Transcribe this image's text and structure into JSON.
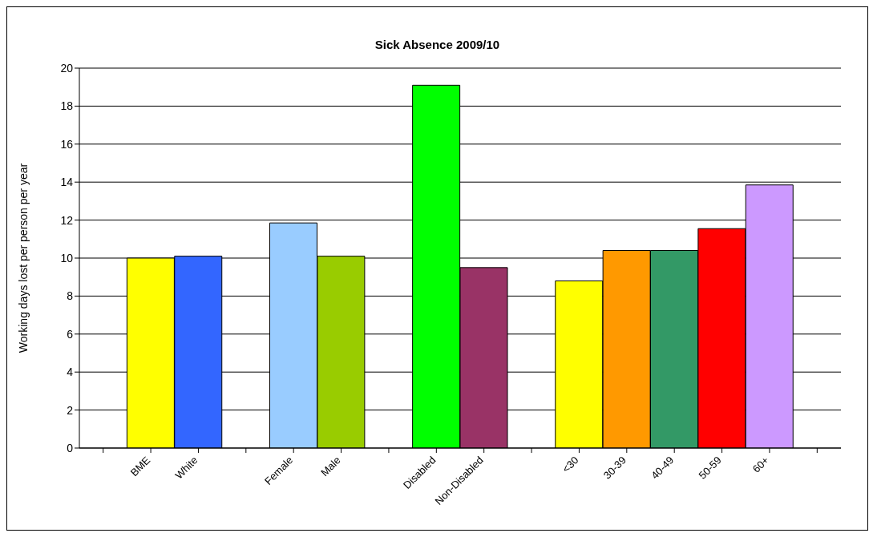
{
  "chart_data": {
    "type": "bar",
    "title": "Sick Absence 2009/10",
    "ylabel": "Working days lost per person per year",
    "categories": [
      null,
      "BME",
      "White",
      null,
      "Female",
      "Male",
      null,
      "Disabled",
      "Non-Disabled",
      null,
      "<30",
      "30-39",
      "40-49",
      "50-59",
      "60+",
      null
    ],
    "values": [
      null,
      10.0,
      10.1,
      null,
      11.85,
      10.1,
      null,
      19.1,
      9.5,
      null,
      8.8,
      10.4,
      10.4,
      11.55,
      13.85,
      null
    ],
    "colors": [
      "#000000",
      "#ffff00",
      "#3366ff",
      "#000000",
      "#99ccff",
      "#99cc00",
      "#000000",
      "#00ff00",
      "#993366",
      "#000000",
      "#ffff00",
      "#ff9900",
      "#339966",
      "#ff0000",
      "#cc99ff",
      "#000000"
    ],
    "ylim": [
      0,
      20
    ],
    "yticks": [
      0,
      2,
      4,
      6,
      8,
      10,
      12,
      14,
      16,
      18,
      20
    ],
    "grid": "y",
    "legend": false
  }
}
